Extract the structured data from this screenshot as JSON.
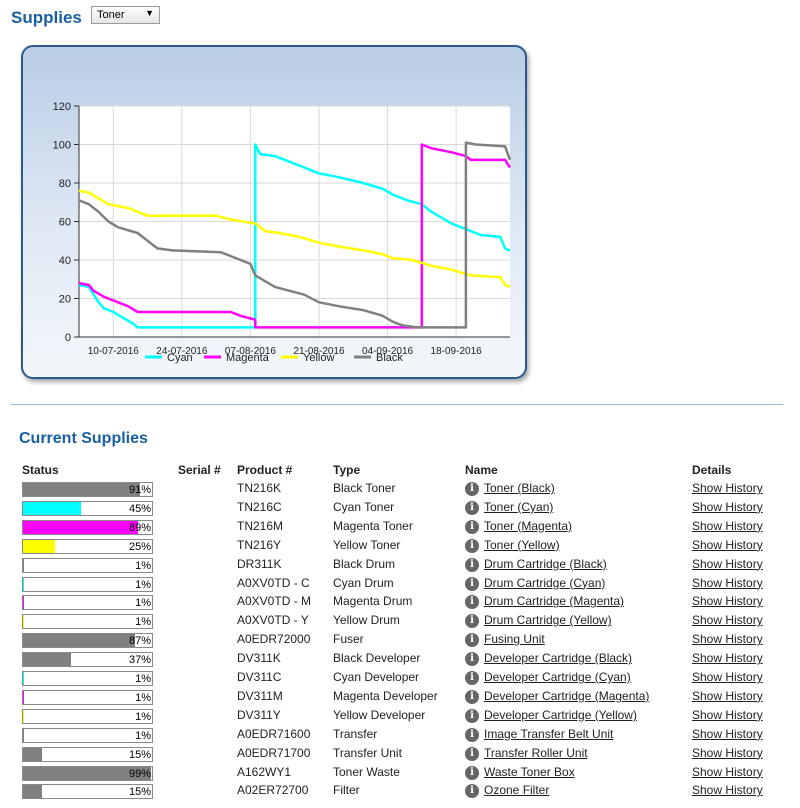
{
  "header": {
    "title": "Supplies",
    "selector_value": "Toner",
    "selector_arrow": "▼"
  },
  "colors": {
    "cyan": "#00ffff",
    "magenta": "#ff00ff",
    "yellow": "#ffff00",
    "black": "#808080",
    "heading": "#1a5fa0"
  },
  "chart_data": {
    "type": "line",
    "title": "",
    "xlabel": "",
    "ylabel": "",
    "ylim": [
      0,
      120
    ],
    "yticks": [
      0,
      20,
      40,
      60,
      80,
      100,
      120
    ],
    "xlim": [
      "2016-07-03",
      "2016-09-29"
    ],
    "xticks": [
      "10-07-2016",
      "24-07-2016",
      "07-08-2016",
      "21-08-2016",
      "04-09-2016",
      "18-09-2016"
    ],
    "grid": true,
    "legend_position": "bottom",
    "series": [
      {
        "name": "Cyan",
        "color": "#00ffff",
        "points": [
          [
            "2016-07-03",
            27
          ],
          [
            "2016-07-05",
            26
          ],
          [
            "2016-07-06",
            22
          ],
          [
            "2016-07-07",
            18
          ],
          [
            "2016-07-08",
            15
          ],
          [
            "2016-07-10",
            13
          ],
          [
            "2016-07-12",
            10
          ],
          [
            "2016-07-14",
            7
          ],
          [
            "2016-07-15",
            5
          ],
          [
            "2016-08-08",
            5
          ],
          [
            "2016-08-08",
            100
          ],
          [
            "2016-08-09",
            95
          ],
          [
            "2016-08-12",
            94
          ],
          [
            "2016-08-15",
            91
          ],
          [
            "2016-08-18",
            88
          ],
          [
            "2016-08-21",
            85
          ],
          [
            "2016-08-25",
            83
          ],
          [
            "2016-08-30",
            80
          ],
          [
            "2016-09-03",
            77
          ],
          [
            "2016-09-05",
            74
          ],
          [
            "2016-09-08",
            71
          ],
          [
            "2016-09-11",
            69
          ],
          [
            "2016-09-13",
            65
          ],
          [
            "2016-09-15",
            62
          ],
          [
            "2016-09-17",
            59
          ],
          [
            "2016-09-20",
            56
          ],
          [
            "2016-09-23",
            53
          ],
          [
            "2016-09-27",
            52
          ],
          [
            "2016-09-28",
            46
          ],
          [
            "2016-09-29",
            45
          ]
        ]
      },
      {
        "name": "Magenta",
        "color": "#ff00ff",
        "points": [
          [
            "2016-07-03",
            28
          ],
          [
            "2016-07-05",
            27
          ],
          [
            "2016-07-06",
            24
          ],
          [
            "2016-07-08",
            21
          ],
          [
            "2016-07-10",
            19
          ],
          [
            "2016-07-13",
            16
          ],
          [
            "2016-07-15",
            13
          ],
          [
            "2016-08-03",
            13
          ],
          [
            "2016-08-05",
            11
          ],
          [
            "2016-08-08",
            9
          ],
          [
            "2016-08-08",
            5
          ],
          [
            "2016-09-11",
            5
          ],
          [
            "2016-09-11",
            100
          ],
          [
            "2016-09-13",
            98
          ],
          [
            "2016-09-17",
            96
          ],
          [
            "2016-09-20",
            94
          ],
          [
            "2016-09-21",
            92
          ],
          [
            "2016-09-28",
            92
          ],
          [
            "2016-09-29",
            88
          ]
        ]
      },
      {
        "name": "Yellow",
        "color": "#ffff00",
        "points": [
          [
            "2016-07-03",
            76
          ],
          [
            "2016-07-05",
            75
          ],
          [
            "2016-07-07",
            72
          ],
          [
            "2016-07-09",
            69
          ],
          [
            "2016-07-13",
            67
          ],
          [
            "2016-07-15",
            65
          ],
          [
            "2016-07-17",
            63
          ],
          [
            "2016-07-31",
            63
          ],
          [
            "2016-08-03",
            61
          ],
          [
            "2016-08-08",
            59
          ],
          [
            "2016-08-10",
            55
          ],
          [
            "2016-08-13",
            54
          ],
          [
            "2016-08-17",
            52
          ],
          [
            "2016-08-21",
            49
          ],
          [
            "2016-08-25",
            47
          ],
          [
            "2016-08-30",
            45
          ],
          [
            "2016-09-03",
            43
          ],
          [
            "2016-09-05",
            41
          ],
          [
            "2016-09-09",
            40
          ],
          [
            "2016-09-13",
            37
          ],
          [
            "2016-09-17",
            35
          ],
          [
            "2016-09-21",
            32
          ],
          [
            "2016-09-27",
            31
          ],
          [
            "2016-09-28",
            27
          ],
          [
            "2016-09-29",
            26
          ]
        ]
      },
      {
        "name": "Black",
        "color": "#808080",
        "points": [
          [
            "2016-07-03",
            71
          ],
          [
            "2016-07-05",
            69
          ],
          [
            "2016-07-07",
            65
          ],
          [
            "2016-07-09",
            60
          ],
          [
            "2016-07-11",
            57
          ],
          [
            "2016-07-15",
            54
          ],
          [
            "2016-07-17",
            50
          ],
          [
            "2016-07-19",
            46
          ],
          [
            "2016-07-22",
            45
          ],
          [
            "2016-08-01",
            44
          ],
          [
            "2016-08-05",
            40
          ],
          [
            "2016-08-07",
            38
          ],
          [
            "2016-08-08",
            32
          ],
          [
            "2016-08-10",
            29
          ],
          [
            "2016-08-12",
            26
          ],
          [
            "2016-08-15",
            24
          ],
          [
            "2016-08-18",
            22
          ],
          [
            "2016-08-21",
            18
          ],
          [
            "2016-08-25",
            16
          ],
          [
            "2016-08-30",
            14
          ],
          [
            "2016-09-03",
            11
          ],
          [
            "2016-09-05",
            8
          ],
          [
            "2016-09-07",
            6
          ],
          [
            "2016-09-10",
            5
          ],
          [
            "2016-09-20",
            5
          ],
          [
            "2016-09-20",
            101
          ],
          [
            "2016-09-22",
            100
          ],
          [
            "2016-09-28",
            99
          ],
          [
            "2016-09-29",
            92
          ]
        ]
      }
    ]
  },
  "current": {
    "title": "Current Supplies",
    "headers": {
      "status": "Status",
      "serial": "Serial #",
      "product": "Product #",
      "type": "Type",
      "name": "Name",
      "details": "Details"
    },
    "info_glyph": "i",
    "rows": [
      {
        "percent": 91,
        "pct": "91%",
        "color": "#808080",
        "product": "TN216K",
        "type": "Black Toner",
        "name": "Toner (Black)",
        "details": "Show History"
      },
      {
        "percent": 45,
        "pct": "45%",
        "color": "#00ffff",
        "product": "TN216C",
        "type": "Cyan Toner",
        "name": "Toner (Cyan)",
        "details": "Show History"
      },
      {
        "percent": 89,
        "pct": "89%",
        "color": "#ff00ff",
        "product": "TN216M",
        "type": "Magenta Toner",
        "name": "Toner (Magenta)",
        "details": "Show History"
      },
      {
        "percent": 25,
        "pct": "25%",
        "color": "#ffff00",
        "product": "TN216Y",
        "type": "Yellow Toner",
        "name": "Toner (Yellow)",
        "details": "Show History"
      },
      {
        "percent": 1,
        "pct": "1%",
        "color": "#808080",
        "product": "DR311K",
        "type": "Black Drum",
        "name": "Drum Cartridge (Black)",
        "details": "Show History"
      },
      {
        "percent": 1,
        "pct": "1%",
        "color": "#00ffff",
        "product": "A0XV0TD - C",
        "type": "Cyan Drum",
        "name": "Drum Cartridge (Cyan)",
        "details": "Show History"
      },
      {
        "percent": 1,
        "pct": "1%",
        "color": "#ff00ff",
        "product": "A0XV0TD - M",
        "type": "Magenta Drum",
        "name": "Drum Cartridge (Magenta)",
        "details": "Show History"
      },
      {
        "percent": 1,
        "pct": "1%",
        "color": "#ffff00",
        "product": "A0XV0TD - Y",
        "type": "Yellow Drum",
        "name": "Drum Cartridge (Yellow)",
        "details": "Show History"
      },
      {
        "percent": 87,
        "pct": "87%",
        "color": "#808080",
        "product": "A0EDR72000",
        "type": "Fuser",
        "name": "Fusing Unit",
        "details": "Show History"
      },
      {
        "percent": 37,
        "pct": "37%",
        "color": "#808080",
        "product": "DV311K",
        "type": "Black Developer",
        "name": "Developer Cartridge (Black)",
        "details": "Show History"
      },
      {
        "percent": 1,
        "pct": "1%",
        "color": "#00ffff",
        "product": "DV311C",
        "type": "Cyan Developer",
        "name": "Developer Cartridge (Cyan)",
        "details": "Show History"
      },
      {
        "percent": 1,
        "pct": "1%",
        "color": "#ff00ff",
        "product": "DV311M",
        "type": "Magenta Developer",
        "name": "Developer Cartridge (Magenta)",
        "details": "Show History"
      },
      {
        "percent": 1,
        "pct": "1%",
        "color": "#ffff00",
        "product": "DV311Y",
        "type": "Yellow Developer",
        "name": "Developer Cartridge (Yellow)",
        "details": "Show History"
      },
      {
        "percent": 1,
        "pct": "1%",
        "color": "#808080",
        "product": "A0EDR71600",
        "type": "Transfer",
        "name": "Image Transfer Belt Unit",
        "details": "Show History"
      },
      {
        "percent": 15,
        "pct": "15%",
        "color": "#808080",
        "product": "A0EDR71700",
        "type": "Transfer Unit",
        "name": "Transfer Roller Unit",
        "details": "Show History"
      },
      {
        "percent": 99,
        "pct": "99%",
        "color": "#808080",
        "product": "A162WY1",
        "type": "Toner Waste",
        "name": "Waste Toner Box",
        "details": "Show History"
      },
      {
        "percent": 15,
        "pct": "15%",
        "color": "#808080",
        "product": "A02ER72700",
        "type": "Filter",
        "name": "Ozone Filter",
        "details": "Show History"
      }
    ]
  }
}
